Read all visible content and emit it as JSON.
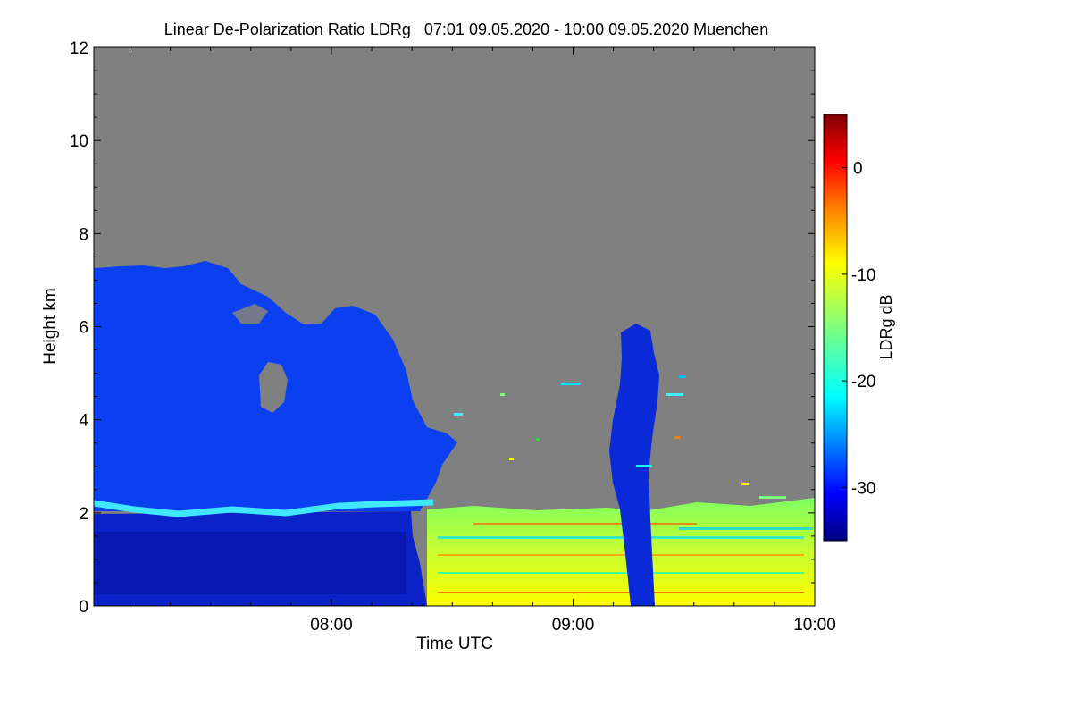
{
  "chart_data": {
    "type": "heatmap",
    "title": "Linear De-Polarization Ratio LDRg   07:01 09.05.2020 - 10:00 09.05.2020 Muenchen",
    "xlabel": "Time UTC",
    "ylabel": "Height km",
    "x_ticks": [
      {
        "label": "08:00",
        "value": 8.0
      },
      {
        "label": "09:00",
        "value": 9.0
      },
      {
        "label": "10:00",
        "value": 10.0
      }
    ],
    "xlim": [
      7.0167,
      10.0
    ],
    "y_ticks": [
      0,
      2,
      4,
      6,
      8,
      10,
      12
    ],
    "ylim": [
      0,
      12
    ],
    "colorbar": {
      "label": "LDRg dB",
      "ticks": [
        0,
        -10,
        -20,
        -30
      ],
      "range": [
        -35,
        5
      ],
      "stops": [
        "#00007f",
        "#0000ff",
        "#007fff",
        "#00ffff",
        "#7fff7f",
        "#ffff00",
        "#ff7f00",
        "#ff0000",
        "#7f0000"
      ]
    },
    "background_color": "#808080",
    "features": [
      {
        "name": "high cloud",
        "t_start": 7.0167,
        "t_end": 8.45,
        "h_bottom": 2.2,
        "h_top": 7.3,
        "ldr_db": -31
      },
      {
        "name": "depolarizing layer",
        "t_start": 7.0167,
        "t_end": 8.35,
        "h": 2.0,
        "ldr_db": -22
      },
      {
        "name": "lower cloud",
        "t_start": 7.0167,
        "t_end": 8.4,
        "h_bottom": 0.2,
        "h_top": 2.0,
        "ldr_db": -33
      },
      {
        "name": "boundary layer aerosol",
        "t_start": 8.4,
        "t_end": 10.0,
        "h_bottom": 0.0,
        "h_top": 2.2,
        "ldr_db": -12
      },
      {
        "name": "precipitation column",
        "t_start": 9.15,
        "t_end": 9.3,
        "h_bottom": 0.0,
        "h_top": 6.0,
        "ldr_db": -32
      }
    ]
  }
}
